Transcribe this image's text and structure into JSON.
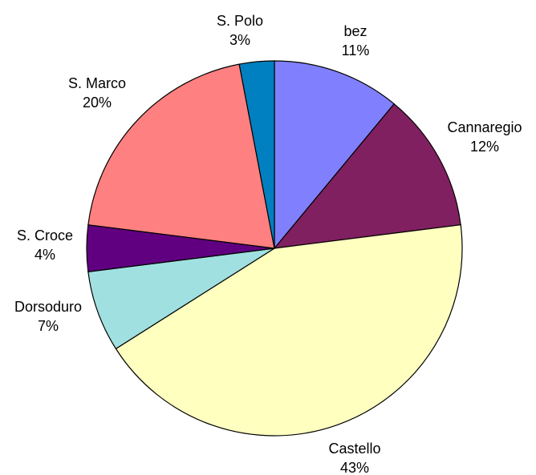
{
  "chart_data": {
    "type": "pie",
    "title": "",
    "start_angle_deg": 0,
    "direction": "clockwise",
    "slices": [
      {
        "label": "bez",
        "value": 11,
        "percent_label": "11%",
        "color": "#8080FF"
      },
      {
        "label": "Cannaregio",
        "value": 12,
        "percent_label": "12%",
        "color": "#802060"
      },
      {
        "label": "Castello",
        "value": 43,
        "percent_label": "43%",
        "color": "#FFFFC0"
      },
      {
        "label": "Dorsoduro",
        "value": 7,
        "percent_label": "7%",
        "color": "#A0E0E0"
      },
      {
        "label": "S. Croce",
        "value": 4,
        "percent_label": "4%",
        "color": "#600080"
      },
      {
        "label": "S. Marco",
        "value": 20,
        "percent_label": "20%",
        "color": "#FF8080"
      },
      {
        "label": "S. Polo",
        "value": 3,
        "percent_label": "3%",
        "color": "#0080C0"
      }
    ]
  }
}
